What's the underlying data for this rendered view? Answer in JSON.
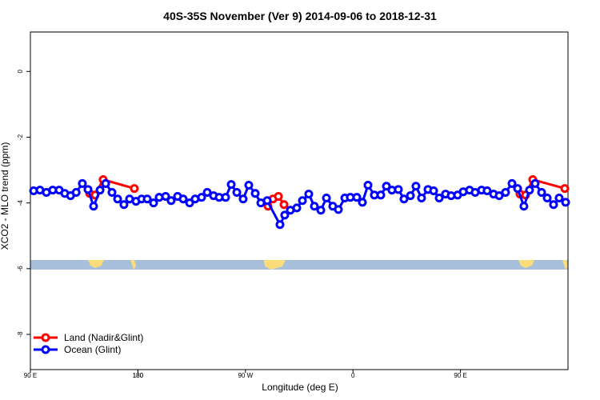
{
  "chart_data": {
    "type": "line",
    "title": "40S-35S November (Ver 9)   2014-09-06 to 2018-12-31",
    "x_label": "Longitude (deg E)",
    "y_label": "XCO2 - MLO trend (ppm)",
    "xlim": [
      90,
      540
    ],
    "xticks": [
      {
        "value": 90,
        "label": "90 E"
      },
      180,
      {
        "value": 270,
        "label": "90 W"
      },
      {
        "value": 360,
        "label": "0"
      },
      {
        "value": 450,
        "label": "90 E"
      },
      180
    ],
    "ylim": [
      -9.07,
      1.2
    ],
    "yticks": [
      0,
      -2,
      -4,
      -6,
      -8
    ],
    "legend": "bottom-left",
    "series": [
      {
        "name": "Land (Nadir&Glint)",
        "color": "#ff0000",
        "x": [
          139.6,
          144.2,
          150.9,
          177.0,
          null,
          288.9,
          293.0,
          297.6,
          302.3,
          null,
          499.8,
          504.5,
          510.5,
          537.3
        ],
        "values": [
          -3.71,
          -3.76,
          -3.29,
          -3.56,
          null,
          -4.1,
          -3.88,
          -3.8,
          -4.05,
          null,
          -3.73,
          -3.76,
          -3.29,
          -3.56
        ]
      },
      {
        "name": "Ocean (Glint)",
        "color": "#0000ff",
        "x": [
          92.7,
          98.0,
          103.4,
          108.7,
          114.1,
          118.8,
          123.6,
          128.3,
          133.5,
          138.2,
          142.9,
          148.3,
          153.0,
          158.3,
          163.0,
          168.3,
          173.0,
          178.4,
          183.1,
          187.8,
          193.1,
          197.8,
          203.2,
          207.8,
          213.2,
          217.9,
          223.3,
          227.9,
          233.3,
          238.0,
          243.3,
          248.0,
          253.4,
          258.1,
          262.8,
          268.1,
          272.8,
          278.2,
          282.9,
          288.2,
          298.9,
          302.9,
          307.6,
          313.0,
          317.7,
          323.0,
          327.7,
          333.1,
          337.8,
          343.1,
          347.8,
          353.2,
          357.8,
          363.2,
          367.9,
          372.6,
          377.9,
          383.3,
          388.0,
          392.6,
          398.0,
          402.7,
          408.1,
          412.7,
          417.4,
          422.8,
          427.5,
          432.2,
          437.5,
          442.2,
          447.6,
          452.3,
          457.6,
          462.3,
          467.7,
          472.3,
          477.7,
          482.4,
          487.7,
          493.1,
          497.8,
          503.1,
          507.8,
          512.5,
          517.9,
          522.6,
          527.9,
          532.6,
          538.0
        ],
        "values": [
          -3.63,
          -3.61,
          -3.68,
          -3.61,
          -3.61,
          -3.71,
          -3.78,
          -3.68,
          -3.41,
          -3.59,
          -4.1,
          -3.61,
          -3.41,
          -3.68,
          -3.88,
          -4.05,
          -3.88,
          -3.95,
          -3.88,
          -3.88,
          -4.0,
          -3.83,
          -3.8,
          -3.93,
          -3.8,
          -3.88,
          -4.0,
          -3.88,
          -3.83,
          -3.68,
          -3.78,
          -3.83,
          -3.83,
          -3.44,
          -3.68,
          -3.88,
          -3.46,
          -3.71,
          -4.0,
          -3.93,
          -4.66,
          -4.37,
          -4.22,
          -4.15,
          -3.93,
          -3.73,
          -4.1,
          -4.22,
          -3.85,
          -4.1,
          -4.2,
          -3.85,
          -3.83,
          -3.83,
          -3.98,
          -3.46,
          -3.76,
          -3.76,
          -3.49,
          -3.61,
          -3.59,
          -3.88,
          -3.78,
          -3.49,
          -3.85,
          -3.59,
          -3.63,
          -3.85,
          -3.73,
          -3.78,
          -3.76,
          -3.66,
          -3.61,
          -3.68,
          -3.61,
          -3.63,
          -3.73,
          -3.78,
          -3.68,
          -3.41,
          -3.56,
          -4.1,
          -3.61,
          -3.41,
          -3.68,
          -3.85,
          -4.05,
          -3.85,
          -3.98
        ]
      }
    ]
  }
}
